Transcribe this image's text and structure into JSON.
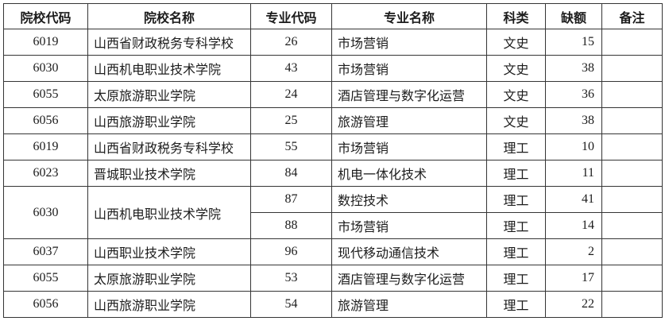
{
  "table": {
    "headers": {
      "institution_code": "院校代码",
      "institution_name": "院校名称",
      "major_code": "专业代码",
      "major_name": "专业名称",
      "category": "科类",
      "vacancy": "缺额",
      "remarks": "备注"
    },
    "rows": [
      {
        "code": "6019",
        "school": "山西省财政税务专科学校",
        "major_code": "26",
        "major": "市场营销",
        "category": "文史",
        "vacancy": "15",
        "note": ""
      },
      {
        "code": "6030",
        "school": "山西机电职业技术学院",
        "major_code": "43",
        "major": "市场营销",
        "category": "文史",
        "vacancy": "38",
        "note": ""
      },
      {
        "code": "6055",
        "school": "太原旅游职业学院",
        "major_code": "24",
        "major": "酒店管理与数字化运营",
        "category": "文史",
        "vacancy": "36",
        "note": ""
      },
      {
        "code": "6056",
        "school": "山西旅游职业学院",
        "major_code": "25",
        "major": "旅游管理",
        "category": "文史",
        "vacancy": "38",
        "note": ""
      },
      {
        "code": "6019",
        "school": "山西省财政税务专科学校",
        "major_code": "55",
        "major": "市场营销",
        "category": "理工",
        "vacancy": "10",
        "note": ""
      },
      {
        "code": "6023",
        "school": "晋城职业技术学院",
        "major_code": "84",
        "major": "机电一体化技术",
        "category": "理工",
        "vacancy": "11",
        "note": ""
      },
      {
        "code": "6030",
        "school": "山西机电职业技术学院",
        "major_code": "87",
        "major": "数控技术",
        "category": "理工",
        "vacancy": "41",
        "note": "",
        "code_rowspan": 2
      },
      {
        "major_code": "88",
        "major": "市场营销",
        "category": "理工",
        "vacancy": "14",
        "note": "",
        "merged_into_above": true
      },
      {
        "code": "6037",
        "school": "山西职业技术学院",
        "major_code": "96",
        "major": "现代移动通信技术",
        "category": "理工",
        "vacancy": "2",
        "note": ""
      },
      {
        "code": "6055",
        "school": "太原旅游职业学院",
        "major_code": "53",
        "major": "酒店管理与数字化运营",
        "category": "理工",
        "vacancy": "17",
        "note": ""
      },
      {
        "code": "6056",
        "school": "山西旅游职业学院",
        "major_code": "54",
        "major": "旅游管理",
        "category": "理工",
        "vacancy": "22",
        "note": ""
      }
    ],
    "colors": {
      "border": "#353535",
      "text": "#1c1c1c",
      "background": "#ffffff"
    }
  }
}
